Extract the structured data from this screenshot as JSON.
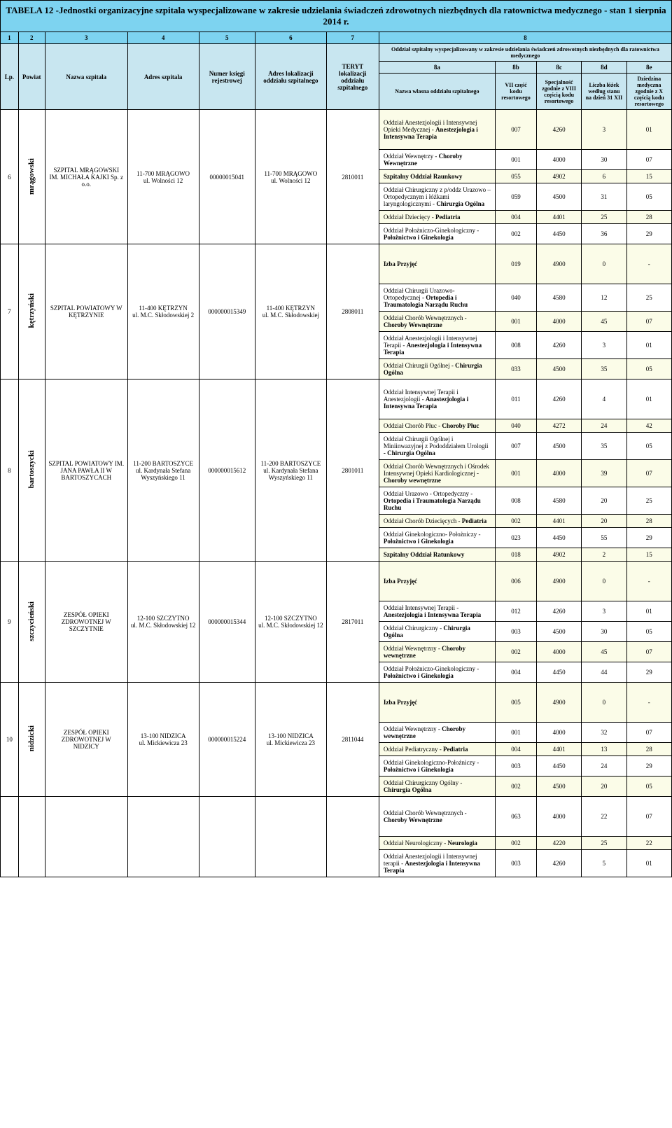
{
  "title": "TABELA 12 -Jednostki organizacyjne szpitala wyspecjalizowane w zakresie udzielania świadczeń zdrowotnych niezbędnych dla ratownictwa medycznego - stan 1 sierpnia 2014  r.",
  "cols": {
    "c1": "1",
    "c2": "2",
    "c3": "3",
    "c4": "4",
    "c5": "5",
    "c6": "6",
    "c7": "7",
    "c8": "8"
  },
  "hdr": {
    "lp": "Lp.",
    "powiat": "Powiat",
    "nazwa": "Nazwa szpitala",
    "adres": "Adres szpitala",
    "ksiega": "Numer księgi rejestrowej",
    "lokal": "Adres lokalizacji oddziału szpitalnego",
    "teryt": "TERYT lokalizacji oddziału szpitalnego",
    "top8": "Oddział  szpitalny  wyspecjalizowany  w zakresie udzielania świadczeń zdrowotnych niezbędnych dla ratownictwa medycznego",
    "c8a": "8a",
    "c8b": "8b",
    "c8c": "8c",
    "c8d": "8d",
    "c8e": "8e",
    "h8a": "Nazwa własna oddziału szpitalnego",
    "h8b": "VII część kodu resortowego",
    "h8c": "Specjalność zgodnie z VIII częścią kodu resortowego",
    "h8d": "Liczba łóżek według stanu na dzień 31 XII",
    "h8e": "Dziedzina medyczna zgodnie z X częścią kodu resortowego"
  },
  "rows": [
    {
      "lp": "6",
      "powiat": "mrągowski",
      "nazwa": "SZPITAL MRĄGOWSKI IM. MICHAŁA KAJKI Sp. z o.o.",
      "adres1": "11-700  MRĄGOWO",
      "adres2": "ul. Wolności 12",
      "ksiega": "00000015041",
      "lok1": "11-700  MRĄGOWO",
      "lok2": "ul. Wolności 12",
      "teryt": "2810011",
      "dept": [
        {
          "n": "Oddział Anestezjologii i Intensywnej Opieki Medycznej -",
          "b": "Anestezjologia i Intensywna Terapia",
          "c": [
            "007",
            "4260",
            "3",
            "01"
          ],
          "alt": 1
        },
        {
          "n": "Oddział Wewnętrzy -",
          "b": "Choroby Wewnętrzne",
          "c": [
            "001",
            "4000",
            "30",
            "07"
          ]
        },
        {
          "b": "Szpitalny Oddział Raunkowy",
          "c": [
            "055",
            "4902",
            "6",
            "15"
          ],
          "alt": 1
        },
        {
          "n": "Oddział Chirurgiczny z p/oddz Urazowo – Ortopedycznym i łóżkami laryngologicznymi -",
          "b": "Chirurgia Ogólna",
          "c": [
            "059",
            "4500",
            "31",
            "05"
          ]
        },
        {
          "n": "Oddział Dziecięcy -",
          "b": "Pediatria",
          "c": [
            "004",
            "4401",
            "25",
            "28"
          ],
          "alt": 1
        },
        {
          "n": "Oddział Położniczo-Ginekologiczny -",
          "b": "Położnictwo i Ginekologia",
          "c": [
            "002",
            "4450",
            "36",
            "29"
          ]
        }
      ]
    },
    {
      "lp": "7",
      "powiat": "kętrzyński",
      "nazwa": "SZPITAL POWIATOWY W KĘTRZYNIE",
      "adres1": "11-400  KĘTRZYN",
      "adres2": "ul. M.C. Skłodowskiej 2",
      "ksiega": "000000015349",
      "lok1": "11-400  KĘTRZYN",
      "lok2": "ul. M.C. Skłodowskiej",
      "teryt": "2808011",
      "dept": [
        {
          "b": "Izba Przyjęć",
          "c": [
            "019",
            "4900",
            "0",
            "-"
          ],
          "alt": 1
        },
        {
          "n": "Oddział Chirurgii Urazowo-Ortopedycznej -",
          "b": "Ortopedia i Traumatologia Narządu Ruchu",
          "c": [
            "040",
            "4580",
            "12",
            "25"
          ]
        },
        {
          "n": "Oddział Chorób Wewnętrznych -",
          "b": "Choroby Wewnętrzne",
          "c": [
            "001",
            "4000",
            "45",
            "07"
          ],
          "alt": 1
        },
        {
          "n": "Oddział Anestezjologii i Intensywnej Terapii -",
          "b": "Anestezjologia i Intensywna Terapia",
          "c": [
            "008",
            "4260",
            "3",
            "01"
          ]
        },
        {
          "n": "Oddział Chirurgii Ogólnej -",
          "b": "Chirurgia Ogólna",
          "c": [
            "033",
            "4500",
            "35",
            "05"
          ],
          "alt": 1
        }
      ]
    },
    {
      "lp": "8",
      "powiat": "bartoszycki",
      "nazwa": "SZPITAL  POWIATOWY IM.  JANA PAWŁA II W  BARTOSZYCACH",
      "adres1": "11-200 BARTOSZYCE",
      "adres2": "ul. Kardynała Stefana Wyszyńskiego 11",
      "ksiega": "000000015612",
      "lok1": "11-200 BARTOSZYCE",
      "lok2": "ul. Kardynała Stefana Wyszyńskiego 11",
      "teryt": "2801011",
      "dept": [
        {
          "n": "Oddział Intensywnej Terapii i Anestezjologii -",
          "b": "Anastezjologia i Intensywna Terapia",
          "c": [
            "011",
            "4260",
            "4",
            "01"
          ]
        },
        {
          "n": "Oddział Chorób Płuc -",
          "b": "Choroby Płuc",
          "c": [
            "040",
            "4272",
            "24",
            "42"
          ],
          "alt": 1
        },
        {
          "n": "Oddział Chirurgii Ogólnej i Miniinwazyjnej z Pododdziałem Urologii",
          "b": "- Chirurgia Ogólna",
          "c": [
            "007",
            "4500",
            "35",
            "05"
          ]
        },
        {
          "n": "Oddział Chorób Wewnętrznych i Ośrodek Intensywnej Opieki Kardiologicznej",
          "b": "- Choroby wewnętrzne",
          "c": [
            "001",
            "4000",
            "39",
            "07"
          ],
          "alt": 1
        },
        {
          "n": "Oddział Urazowo - Ortopedyczny -",
          "b": "Ortopedia i Traumatologia Narządu Ruchu",
          "c": [
            "008",
            "4580",
            "20",
            "25"
          ]
        },
        {
          "n": "Oddział Chorób Dziecięcych -",
          "b": "Pediatria",
          "c": [
            "002",
            "4401",
            "20",
            "28"
          ],
          "alt": 1
        },
        {
          "n": "Oddział Ginekologiczno- Położniczy -",
          "b": "Położnictwo i Ginekologia",
          "c": [
            "023",
            "4450",
            "55",
            "29"
          ]
        },
        {
          "b": "Szpitalny Oddział Ratunkowy",
          "c": [
            "018",
            "4902",
            "2",
            "15"
          ],
          "alt": 1
        }
      ]
    },
    {
      "lp": "9",
      "powiat": "szczycieński",
      "nazwa": "ZESPÓŁ OPIEKI ZDROWOTNEJ W SZCZYTNIE",
      "adres1": "12-100 SZCZYTNO",
      "adres2": "ul. M.C. Skłodowskiej 12",
      "ksiega": "000000015344",
      "lok1": "12-100 SZCZYTNO",
      "lok2": "ul. M.C. Skłodowskiej 12",
      "teryt": "2817011",
      "dept": [
        {
          "b": "Izba Przyjęć",
          "c": [
            "006",
            "4900",
            "0",
            "-"
          ],
          "alt": 1
        },
        {
          "n": "Oddział Intensywnej Terapii -",
          "b": "Anestezjologia i Intensywna Terapia",
          "c": [
            "012",
            "4260",
            "3",
            "01"
          ]
        },
        {
          "n": "Oddział Chirurgiczny -",
          "b": "Chirurgia Ogólna",
          "c": [
            "003",
            "4500",
            "30",
            "05"
          ]
        },
        {
          "n": "Oddział Wewnętrzny -",
          "b": "Choroby wewnętrzne",
          "c": [
            "002",
            "4000",
            "45",
            "07"
          ],
          "alt": 1
        },
        {
          "n": "Oddział Położniczo-Ginekologiczny -",
          "b": "Położnictwo i Ginekologia",
          "c": [
            "004",
            "4450",
            "44",
            "29"
          ]
        }
      ]
    },
    {
      "lp": "10",
      "powiat": "nidzicki",
      "nazwa": "ZESPÓŁ OPIEKI ZDROWOTNEJ W NIDZICY",
      "adres1": "13-100 NIDZICA",
      "adres2": "ul. Mickiewicza 23",
      "ksiega": "000000015224",
      "lok1": "13-100 NIDZICA",
      "lok2": "ul. Mickiewicza 23",
      "teryt": "2811044",
      "dept": [
        {
          "b": "Izba Przyjęć",
          "c": [
            "005",
            "4900",
            "0",
            "-"
          ],
          "alt": 1
        },
        {
          "n": "Oddział Wewnętrzny -",
          "b": "Choroby wewnętrzne",
          "c": [
            "001",
            "4000",
            "32",
            "07"
          ]
        },
        {
          "n": "Oddział Pediatryczny -",
          "b": "Pediatria",
          "c": [
            "004",
            "4401",
            "13",
            "28"
          ],
          "alt": 1
        },
        {
          "n": "Oddział Ginekologiczno-Położniczy -",
          "b": "Położnictwo i Ginekologia",
          "c": [
            "003",
            "4450",
            "24",
            "29"
          ]
        },
        {
          "n": "Oddział Chirurgiczny Ogólny -",
          "b": "Chirurgia Ogólna",
          "c": [
            "002",
            "4500",
            "20",
            "05"
          ],
          "alt": 1
        }
      ]
    },
    {
      "lp": "",
      "powiat": "",
      "nazwa": "",
      "adres1": "",
      "adres2": "",
      "ksiega": "",
      "lok1": "",
      "lok2": "",
      "teryt": "",
      "dept": [
        {
          "n": "Oddział Chorób Wewnętrznych -",
          "b": "Choroby Wewnętrzne",
          "c": [
            "063",
            "4000",
            "22",
            "07"
          ]
        },
        {
          "n": "Oddział Neurologiczny -",
          "b": "Neurologia",
          "c": [
            "002",
            "4220",
            "25",
            "22"
          ],
          "alt": 1
        },
        {
          "n": "Oddział Anestezjologii i Intensywnej terapii -",
          "b": "Anestezjologia i Intensywna Terapia",
          "c": [
            "003",
            "4260",
            "5",
            "01"
          ]
        }
      ]
    }
  ]
}
